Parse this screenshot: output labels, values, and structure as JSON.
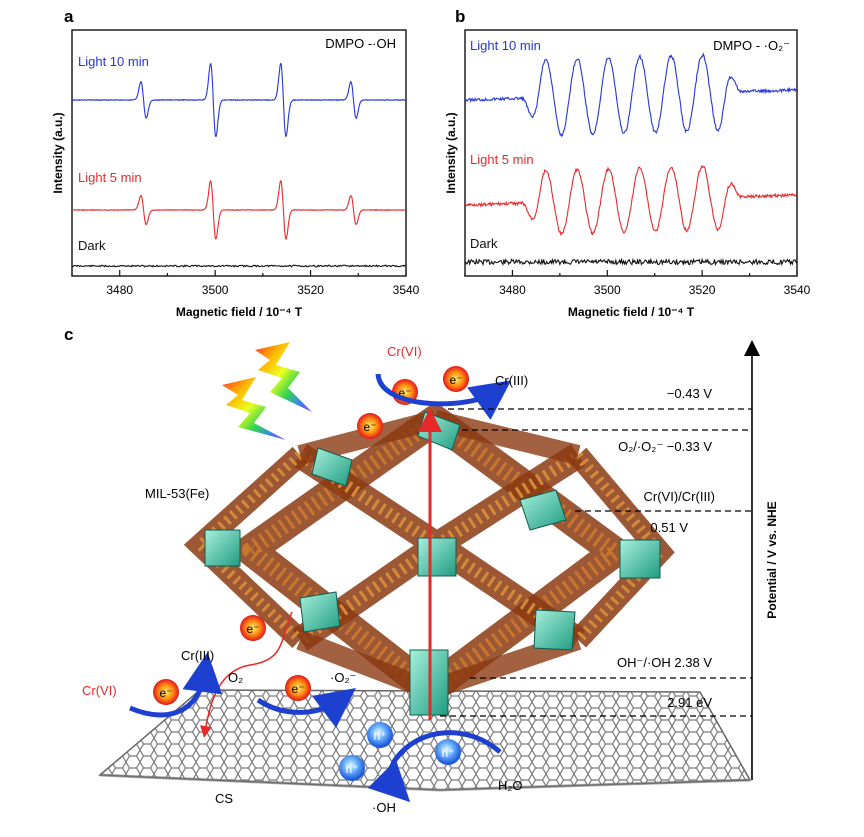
{
  "panel_a": {
    "letter": "a",
    "title": "DMPO -·OH",
    "xlabel": "Magnetic field / 10⁻⁴ T",
    "ylabel": "Intensity (a.u.)",
    "labels": [
      "Light 10 min",
      "Light 5 min",
      "Dark"
    ],
    "colors": [
      "#2436d8",
      "#e8292a",
      "#111111"
    ]
  },
  "panel_b": {
    "letter": "b",
    "title": "DMPO - ·O₂⁻",
    "xlabel": "Magnetic field / 10⁻⁴ T",
    "ylabel": "Intensity (a.u.)",
    "labels": [
      "Light 10 min",
      "Light 5 min",
      "Dark"
    ],
    "colors": [
      "#2436d8",
      "#e8292a",
      "#111111"
    ]
  },
  "chart_data": [
    {
      "type": "line",
      "panel": "a",
      "title": "DMPO -·OH",
      "xlabel": "Magnetic field / 10⁻⁴ T",
      "ylabel": "Intensity (a.u.)",
      "xlim": [
        3470,
        3540
      ],
      "xticks": [
        3480,
        3500,
        3520,
        3540
      ],
      "series": [
        {
          "name": "Light 10 min",
          "line_centers": [
            3485,
            3499.6,
            3514.3,
            3529
          ],
          "rel_intensity": [
            1,
            2,
            2,
            1
          ]
        },
        {
          "name": "Light 5 min",
          "line_centers": [
            3485,
            3499.6,
            3514.3,
            3529
          ],
          "rel_intensity": [
            1,
            2,
            2,
            1
          ]
        },
        {
          "name": "Dark",
          "line_centers": [],
          "rel_intensity": []
        }
      ]
    },
    {
      "type": "line",
      "panel": "b",
      "title": "DMPO - ·O₂⁻",
      "xlabel": "Magnetic field / 10⁻⁴ T",
      "ylabel": "Intensity (a.u.)",
      "xlim": [
        3470,
        3540
      ],
      "xticks": [
        3480,
        3500,
        3520,
        3540
      ],
      "series": [
        {
          "name": "Light 10 min",
          "peak_positions": [
            3487,
            3496,
            3502,
            3509,
            3515,
            3522
          ]
        },
        {
          "name": "Light 5 min",
          "peak_positions": [
            3487,
            3496,
            3502,
            3509,
            3515,
            3522
          ]
        },
        {
          "name": "Dark",
          "peak_positions": []
        }
      ]
    }
  ],
  "panel_c": {
    "letter": "c",
    "material": "MIL-53(Fe)",
    "support": "CS",
    "electron": "e⁻",
    "hole": "h⁺",
    "cr6": "Cr(VI)",
    "cr3": "Cr(III)",
    "o2": "O₂",
    "o2_radical": "·O₂⁻",
    "h2o": "H₂O",
    "oh_radical": "·OH",
    "axis_label": "Potential / V vs. NHE",
    "levels": [
      {
        "label": "−0.43 V"
      },
      {
        "label": "O₂/·O₂⁻  −0.33 V"
      },
      {
        "label": "Cr(VI)/Cr(III)"
      },
      {
        "label": "0.51 V"
      },
      {
        "label": "OH⁻/·OH  2.38 V"
      },
      {
        "label": "2.91 eV"
      }
    ]
  }
}
